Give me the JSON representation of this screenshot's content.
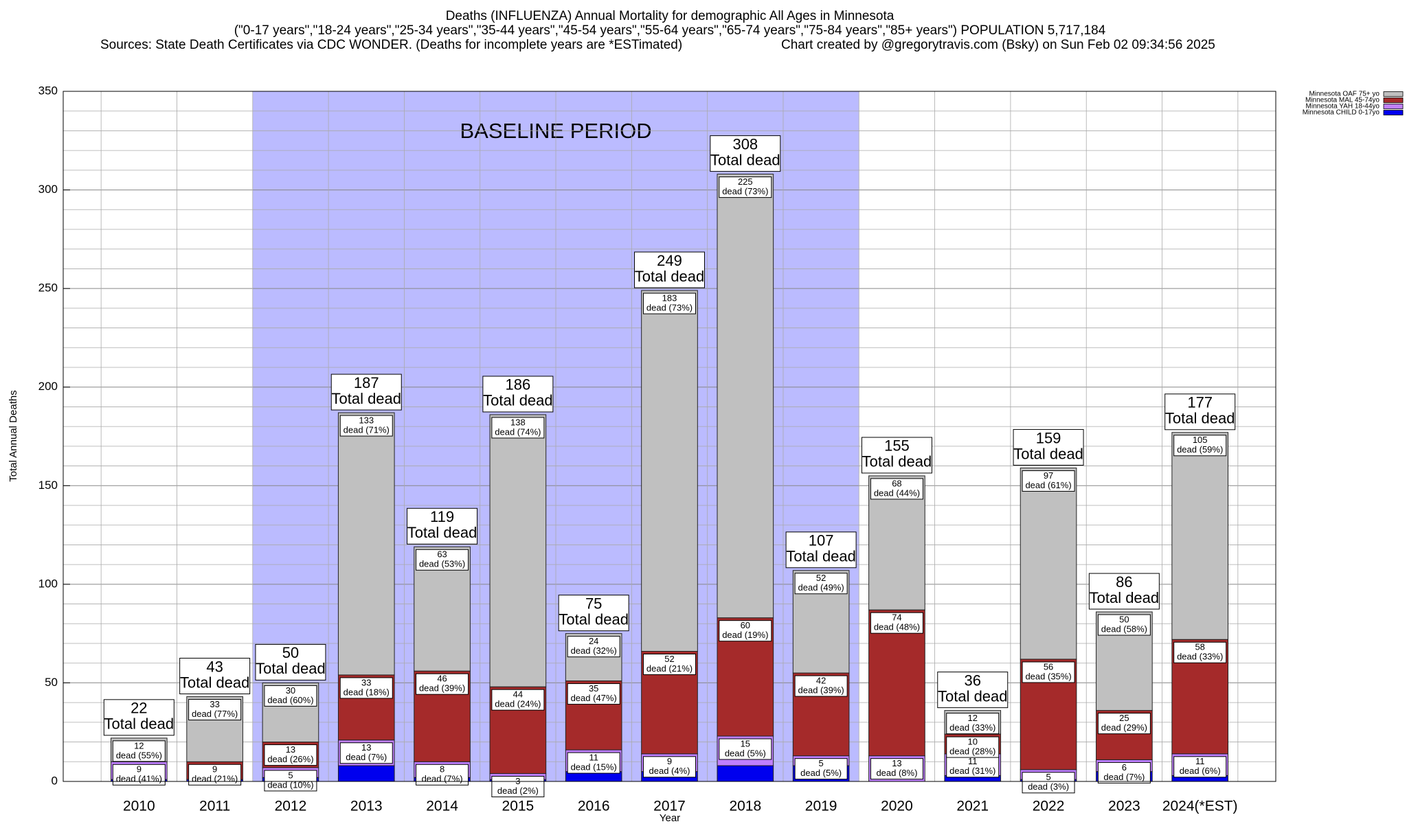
{
  "chart_data": {
    "type": "stacked_bar",
    "title": "Deaths (INFLUENZA) Annual Mortality for demographic All Ages in Minnesota",
    "subtitle": "(\"0-17 years\",\"18-24 years\",\"25-34 years\",\"35-44 years\",\"45-54 years\",\"55-64 years\",\"65-74 years\",\"75-84 years\",\"85+ years\") POPULATION 5,717,184",
    "sources": "Sources: State Death Certificates via CDC WONDER. (Deaths for incomplete years are *ESTimated)",
    "credit": "Chart created by @gregorytravis.com (Bsky) on Sun Feb 02 09:34:56 2025",
    "x_label": "Year",
    "y_label": "Total Annual Deaths",
    "categories": [
      "2010",
      "2011",
      "2012",
      "2013",
      "2014",
      "2015",
      "2016",
      "2017",
      "2018",
      "2019",
      "2020",
      "2021",
      "2022",
      "2023",
      "2024(*EST)"
    ],
    "series": [
      {
        "name": "Minnesota OAF 75+ yo",
        "color": "#c0c0c0",
        "values": [
          12,
          33,
          30,
          133,
          63,
          138,
          24,
          183,
          225,
          52,
          68,
          12,
          97,
          50,
          105
        ],
        "percent_labels": [
          "dead (55%)",
          "dead (77%)",
          "dead (60%)",
          "dead (71%)",
          "dead (53%)",
          "dead (74%)",
          "dead (32%)",
          "dead (73%)",
          "dead (73%)",
          "dead (49%)",
          "dead (44%)",
          "dead (33%)",
          "dead (61%)",
          "dead (58%)",
          "dead (59%)"
        ]
      },
      {
        "name": "Minnesota MAL 45-74yo",
        "color": "#a52a2a",
        "values": [
          0,
          9,
          13,
          33,
          46,
          44,
          35,
          52,
          60,
          42,
          74,
          10,
          56,
          25,
          58
        ],
        "percent_labels": [
          null,
          "dead (21%)",
          "dead (26%)",
          "dead (18%)",
          "dead (39%)",
          "dead (24%)",
          "dead (47%)",
          "dead (21%)",
          "dead (19%)",
          "dead (39%)",
          "dead (48%)",
          "dead (28%)",
          "dead (35%)",
          "dead (29%)",
          "dead (33%)"
        ]
      },
      {
        "name": "Minnesota YAH 18-44yo",
        "color": "#c080ff",
        "values": [
          9,
          0,
          5,
          13,
          8,
          3,
          11,
          9,
          15,
          5,
          13,
          11,
          5,
          6,
          11
        ],
        "percent_labels": [
          "dead (41%)",
          null,
          "dead (10%)",
          "dead (7%)",
          "dead (7%)",
          "dead (2%)",
          "dead (15%)",
          "dead (4%)",
          "dead (5%)",
          "dead (5%)",
          "dead (8%)",
          "dead (31%)",
          "dead (3%)",
          "dead (7%)",
          "dead (6%)"
        ]
      },
      {
        "name": "Minnesota CHILD 0-17yo",
        "color": "#0000ee",
        "values": [
          1,
          1,
          2,
          8,
          2,
          1,
          5,
          5,
          8,
          8,
          0,
          3,
          1,
          5,
          3
        ]
      }
    ],
    "totals": [
      22,
      43,
      50,
      187,
      119,
      186,
      75,
      249,
      308,
      107,
      155,
      36,
      159,
      86,
      177
    ],
    "total_label": "Total dead",
    "annotation": {
      "text": "BASELINE PERIOD",
      "from": "2012",
      "to": "2019",
      "color": "#bbbbff"
    },
    "ylim": [
      0,
      350
    ],
    "yticks": [
      0,
      50,
      100,
      150,
      200,
      250,
      300,
      350
    ],
    "minor_yticks": [
      10,
      20,
      30,
      40,
      60,
      70,
      80,
      90,
      110,
      120,
      130,
      140,
      160,
      170,
      180,
      190,
      210,
      220,
      230,
      240,
      260,
      270,
      280,
      290,
      310,
      320,
      330,
      340
    ],
    "grid": true,
    "legend": "top-right"
  }
}
